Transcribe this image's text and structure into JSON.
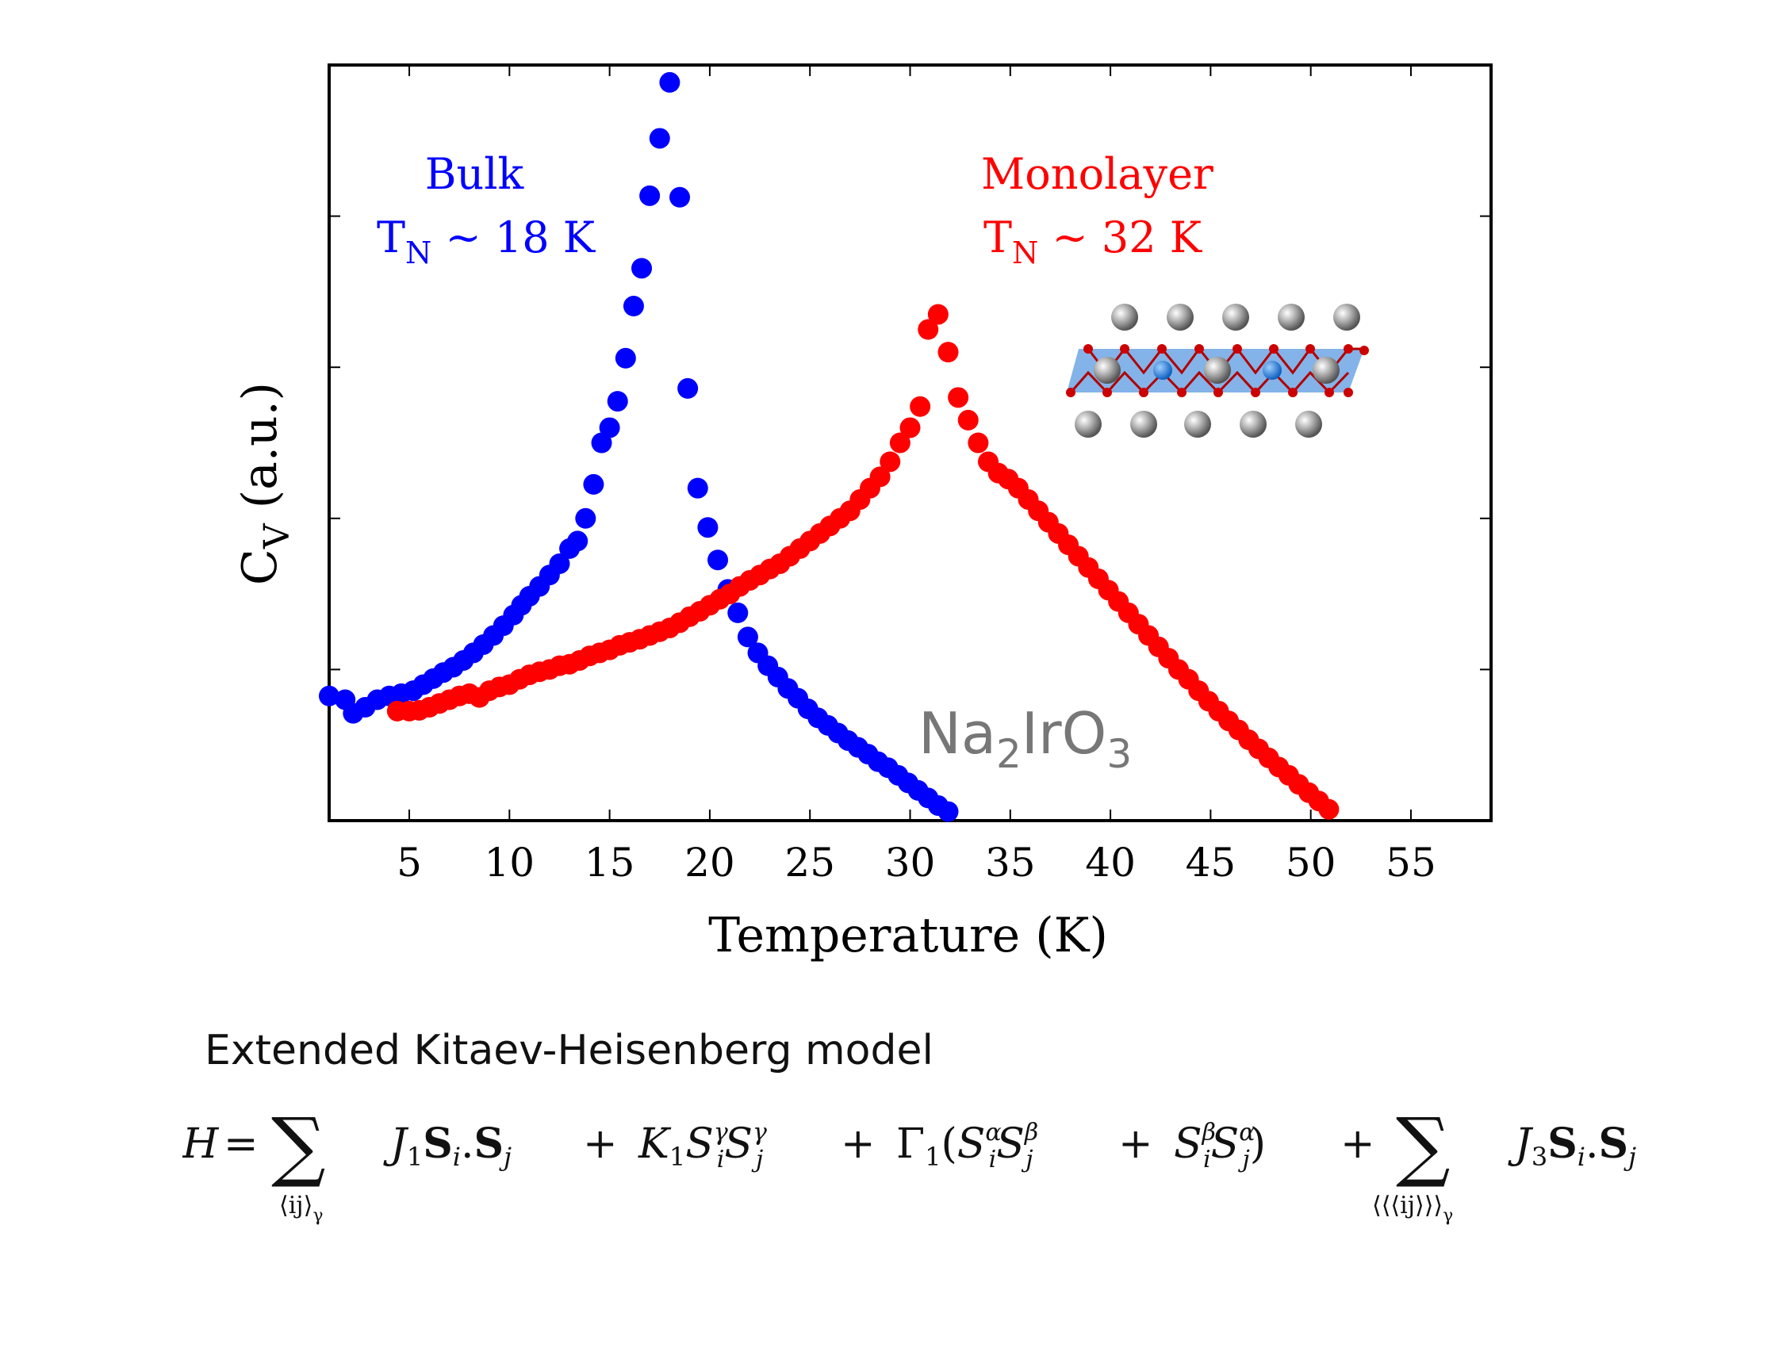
{
  "chart_data": {
    "type": "scatter",
    "xlabel": "Temperature (K)",
    "ylabel": "C",
    "ylabel_subscript": "V",
    "ylabel_suffix": " (a.u.)",
    "xlim": [
      1,
      59
    ],
    "ylim": [
      0,
      1
    ],
    "x_ticks": [
      5,
      10,
      15,
      20,
      25,
      30,
      35,
      40,
      45,
      50,
      55
    ],
    "y_tick_labels": "none",
    "y_ticks": [
      0.2,
      0.4,
      0.6,
      0.8
    ],
    "grid": false,
    "series": [
      {
        "name": "Bulk",
        "color": "#0000ff",
        "annotation": {
          "line1": "Bulk",
          "line2_main": "T",
          "line2_sub": "N",
          "line2_rest": " ~ 18 K"
        },
        "x": [
          1.0,
          1.8,
          2.2,
          2.8,
          3.4,
          4.0,
          4.6,
          5.2,
          5.7,
          6.2,
          6.7,
          7.2,
          7.7,
          8.2,
          8.7,
          9.2,
          9.7,
          10.2,
          10.6,
          11.0,
          11.5,
          12.0,
          12.5,
          13.0,
          13.4,
          13.8,
          14.2,
          14.6,
          15.0,
          15.4,
          15.8,
          16.2,
          16.6,
          17.0,
          17.5,
          18.0,
          18.5,
          18.9,
          19.4,
          19.9,
          20.4,
          20.9,
          21.4,
          21.9,
          22.4,
          22.9,
          23.4,
          23.9,
          24.4,
          24.9,
          25.4,
          25.9,
          26.4,
          26.9,
          27.4,
          27.9,
          28.4,
          28.9,
          29.4,
          29.9,
          30.4,
          30.9,
          31.4,
          31.9
        ],
        "y": [
          0.165,
          0.16,
          0.142,
          0.15,
          0.16,
          0.165,
          0.168,
          0.172,
          0.18,
          0.188,
          0.196,
          0.203,
          0.212,
          0.222,
          0.233,
          0.245,
          0.258,
          0.272,
          0.285,
          0.297,
          0.31,
          0.325,
          0.34,
          0.36,
          0.37,
          0.4,
          0.445,
          0.5,
          0.52,
          0.555,
          0.612,
          0.681,
          0.731,
          0.827,
          0.903,
          0.977,
          0.825,
          0.572,
          0.44,
          0.388,
          0.345,
          0.306,
          0.275,
          0.243,
          0.222,
          0.205,
          0.19,
          0.175,
          0.162,
          0.148,
          0.136,
          0.126,
          0.116,
          0.106,
          0.097,
          0.088,
          0.078,
          0.07,
          0.06,
          0.05,
          0.04,
          0.03,
          0.02,
          0.012
        ]
      },
      {
        "name": "Monolayer",
        "color": "#ff0000",
        "annotation": {
          "line1": "Monolayer",
          "line2_main": "T",
          "line2_sub": "N",
          "line2_rest": " ~ 32 K"
        },
        "x": [
          4.4,
          5.0,
          5.5,
          6.0,
          6.5,
          7.0,
          7.5,
          8.0,
          8.5,
          9.0,
          9.5,
          10.0,
          10.5,
          11.0,
          11.5,
          12.0,
          12.5,
          13.0,
          13.5,
          14.0,
          14.5,
          15.0,
          15.5,
          16.0,
          16.5,
          17.0,
          17.5,
          18.0,
          18.5,
          19.0,
          19.5,
          20.0,
          20.5,
          21.0,
          21.5,
          22.0,
          22.5,
          23.0,
          23.5,
          24.0,
          24.5,
          25.0,
          25.5,
          26.0,
          26.5,
          27.0,
          27.5,
          28.0,
          28.5,
          29.0,
          29.5,
          30.0,
          30.5,
          30.9,
          31.4,
          31.9,
          32.4,
          32.9,
          33.4,
          33.9,
          34.4,
          34.9,
          35.4,
          35.9,
          36.4,
          36.9,
          37.4,
          37.9,
          38.4,
          38.9,
          39.4,
          39.9,
          40.4,
          40.9,
          41.4,
          41.9,
          42.4,
          42.9,
          43.4,
          43.9,
          44.4,
          44.9,
          45.4,
          45.9,
          46.4,
          46.9,
          47.4,
          47.9,
          48.4,
          48.9,
          49.4,
          49.9,
          50.4,
          50.9
        ],
        "y": [
          0.145,
          0.145,
          0.146,
          0.15,
          0.155,
          0.16,
          0.165,
          0.168,
          0.163,
          0.172,
          0.177,
          0.18,
          0.187,
          0.193,
          0.197,
          0.2,
          0.205,
          0.207,
          0.212,
          0.218,
          0.222,
          0.226,
          0.232,
          0.236,
          0.24,
          0.245,
          0.25,
          0.255,
          0.262,
          0.27,
          0.277,
          0.285,
          0.293,
          0.3,
          0.31,
          0.318,
          0.325,
          0.333,
          0.34,
          0.35,
          0.36,
          0.37,
          0.38,
          0.39,
          0.4,
          0.41,
          0.425,
          0.44,
          0.455,
          0.475,
          0.5,
          0.52,
          0.548,
          0.65,
          0.67,
          0.62,
          0.56,
          0.53,
          0.5,
          0.475,
          0.46,
          0.452,
          0.44,
          0.425,
          0.41,
          0.395,
          0.38,
          0.365,
          0.35,
          0.335,
          0.32,
          0.305,
          0.29,
          0.275,
          0.26,
          0.245,
          0.23,
          0.215,
          0.2,
          0.187,
          0.172,
          0.158,
          0.145,
          0.132,
          0.12,
          0.107,
          0.095,
          0.083,
          0.071,
          0.06,
          0.048,
          0.037,
          0.026,
          0.015
        ]
      }
    ],
    "inset_label": {
      "main": "Na",
      "sub1": "2",
      "mid": "IrO",
      "sub2": "3"
    }
  },
  "model": {
    "title": "Extended Kitaev-Heisenberg  model",
    "sum1_under": "⟨ij⟩",
    "sum1_under_sub": "γ",
    "sum2_under": "⟨⟨⟨ij⟩⟩⟩",
    "sum2_under_sub": "γ"
  },
  "colors": {
    "bulk": "#0000ff",
    "monolayer": "#ff0000",
    "inset_text": "#777777",
    "axis": "#000000"
  }
}
